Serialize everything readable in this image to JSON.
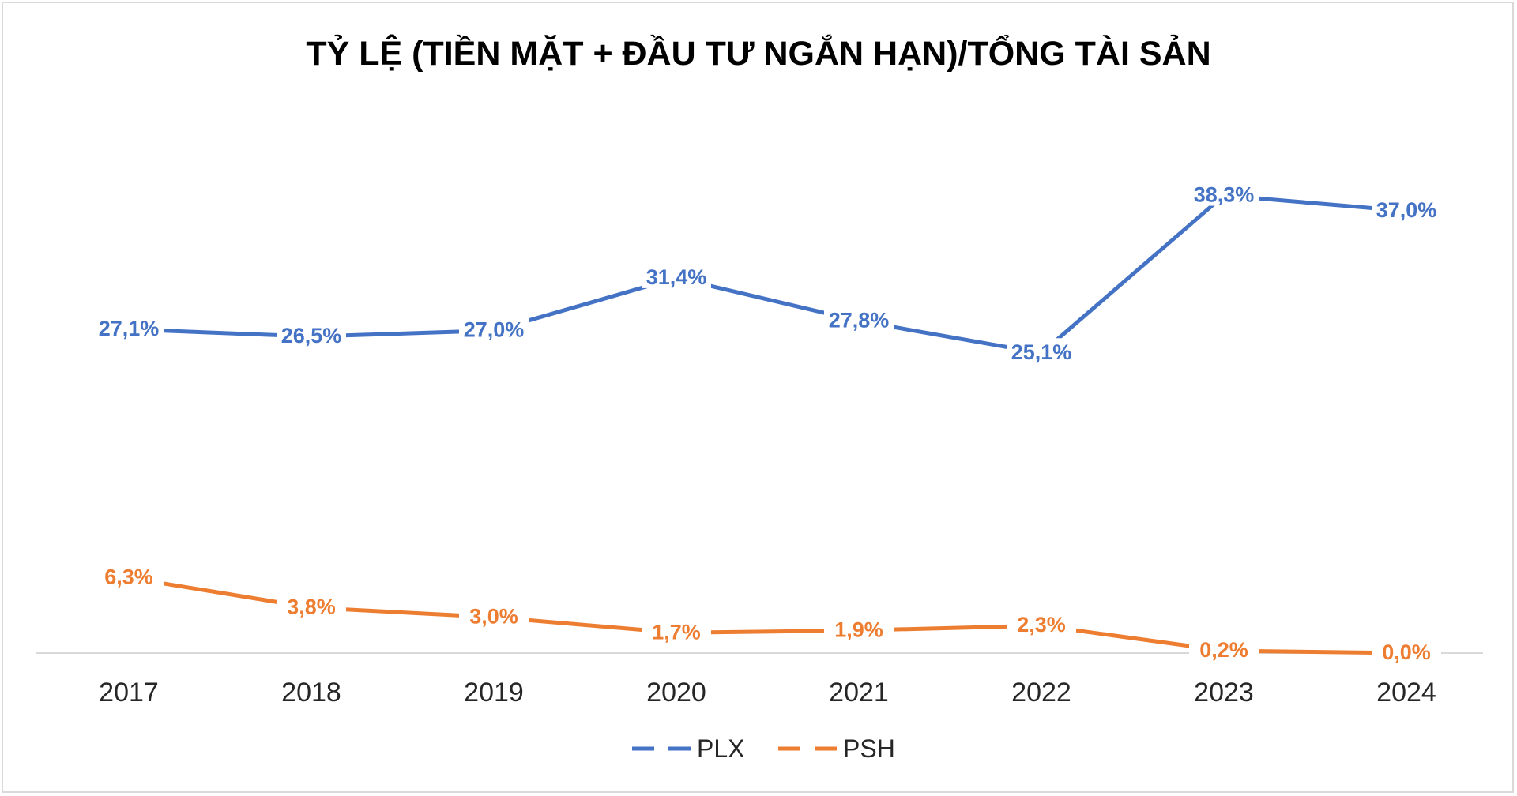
{
  "chart_data": {
    "type": "line",
    "title": "TỶ LỆ (TIỀN MẶT + ĐẦU TƯ NGẮN HẠN)/TỔNG TÀI SẢN",
    "categories": [
      "2017",
      "2018",
      "2019",
      "2020",
      "2021",
      "2022",
      "2023",
      "2024"
    ],
    "series": [
      {
        "name": "PLX",
        "color": "#4472c4",
        "values": [
          27.1,
          26.5,
          27.0,
          31.4,
          27.8,
          25.1,
          38.3,
          37.0
        ],
        "labels": [
          "27,1%",
          "26,5%",
          "27,0%",
          "31,4%",
          "27,8%",
          "25,1%",
          "38,3%",
          "37,0%"
        ]
      },
      {
        "name": "PSH",
        "color": "#ed7d31",
        "values": [
          6.3,
          3.8,
          3.0,
          1.7,
          1.9,
          2.3,
          0.2,
          0.0
        ],
        "labels": [
          "6,3%",
          "3,8%",
          "3,0%",
          "1,7%",
          "1,9%",
          "2,3%",
          "0,2%",
          "0,0%"
        ]
      }
    ],
    "legend_position": "bottom",
    "grid": false,
    "ylim": [
      0,
      42
    ]
  }
}
